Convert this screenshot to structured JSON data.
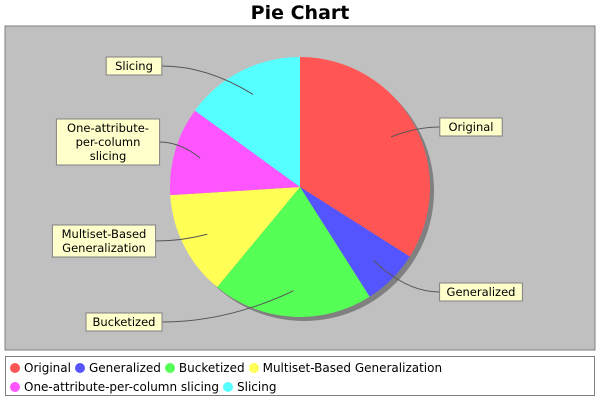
{
  "chart_data": {
    "type": "pie",
    "title": "Pie Chart",
    "legend_position": "bottom",
    "slices": [
      {
        "name": "Original",
        "value": 34,
        "color": "#ff5555"
      },
      {
        "name": "Generalized",
        "value": 7,
        "color": "#5555ff"
      },
      {
        "name": "Bucketized",
        "value": 20,
        "color": "#55ff55"
      },
      {
        "name": "Multiset-Based Generalization",
        "value": 13,
        "color": "#ffff55"
      },
      {
        "name": "One-attribute-per-column slicing",
        "value": 11,
        "color": "#ff55ff"
      },
      {
        "name": "Slicing",
        "value": 15,
        "color": "#55ffff"
      }
    ],
    "slice_labels": [
      [
        "Original"
      ],
      [
        "Generalized"
      ],
      [
        "Bucketized"
      ],
      [
        "Multiset-Based",
        "Generalization"
      ],
      [
        "One-attribute-",
        "per-column",
        "slicing"
      ],
      [
        "Slicing"
      ]
    ],
    "plot_background": "#c0c0c0"
  }
}
